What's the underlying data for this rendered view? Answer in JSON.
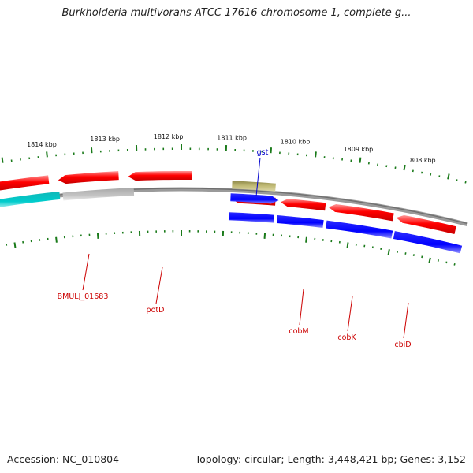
{
  "title": "Burkholderia multivorans ATCC 17616 chromosome 1, complete g...",
  "footer": {
    "accession": "Accession: NC_010804",
    "summary": "Topology: circular; Length: 3,448,421 bp; Genes: 3,152"
  },
  "colors": {
    "forward_gene": "#ff0000",
    "reverse_gene": "#0000ff",
    "trna": "#00c0c0",
    "pseudo": "#c0c0c0",
    "other": "#b8b070",
    "backbone": "#8a8a8a",
    "tick": "#1a7a1a",
    "label_red": "#cc0000",
    "label_blue": "#0000cc"
  },
  "scale_labels": [
    "1814 kbp",
    "1813 kbp",
    "1812 kbp",
    "1811 kbp",
    "1810 kbp",
    "1809 kbp",
    "1808 kbp"
  ],
  "gene_labels": [
    {
      "name": "gst",
      "color": "label_blue"
    },
    {
      "name": "BMULJ_01683",
      "color": "label_red"
    },
    {
      "name": "potD",
      "color": "label_red"
    },
    {
      "name": "cobM",
      "color": "label_red"
    },
    {
      "name": "cobK",
      "color": "label_red"
    },
    {
      "name": "cbiD",
      "color": "label_red"
    }
  ]
}
